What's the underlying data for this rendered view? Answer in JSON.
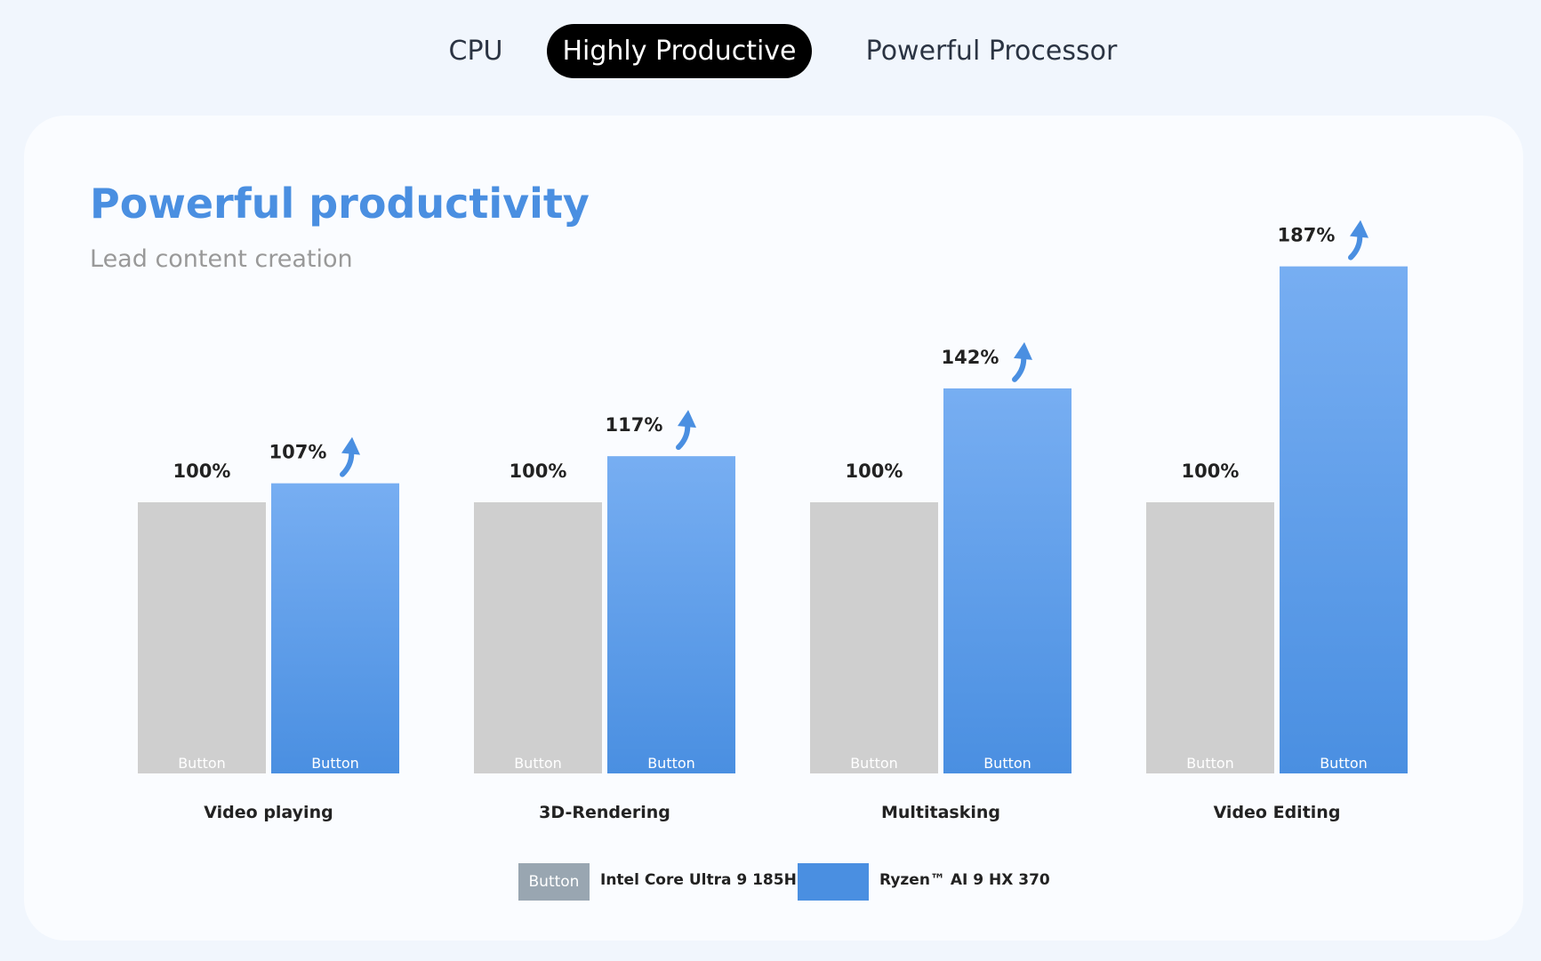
{
  "tabs": [
    {
      "label": "CPU",
      "active": false
    },
    {
      "label": "Highly Productive",
      "active": true
    },
    {
      "label": "Powerful Processor",
      "active": false
    }
  ],
  "card": {
    "title": "Powerful productivity",
    "subtitle": "Lead content creation"
  },
  "bar_button_label": "Button",
  "legend": {
    "intel_button_label": "Button",
    "intel_label": "Intel Core Ultra 9 185H",
    "ryzen_label": "Ryzen™ AI 9 HX 370"
  },
  "colors": {
    "accent": "#4a8fe1",
    "bar_grey": "#cfcfcf",
    "bar_blue_top": "#77aef2",
    "bar_blue_bottom": "#4a8fe1",
    "arrow": "#4a8fe1"
  },
  "chart_data": {
    "type": "bar",
    "title": "Powerful productivity",
    "subtitle": "Lead content creation",
    "categories": [
      "Video playing",
      "3D-Rendering",
      "Multitasking",
      "Video Editing"
    ],
    "series": [
      {
        "name": "Intel Core Ultra 9 185H",
        "values": [
          100,
          100,
          100,
          100
        ],
        "labels": [
          "100%",
          "100%",
          "100%",
          "100%"
        ]
      },
      {
        "name": "Ryzen™ AI 9 HX 370",
        "values": [
          107,
          117,
          142,
          187
        ],
        "labels": [
          "107%",
          "117%",
          "142%",
          "187%"
        ]
      }
    ],
    "ylim": [
      0,
      187
    ],
    "grid": false,
    "legend_position": "bottom-center"
  }
}
